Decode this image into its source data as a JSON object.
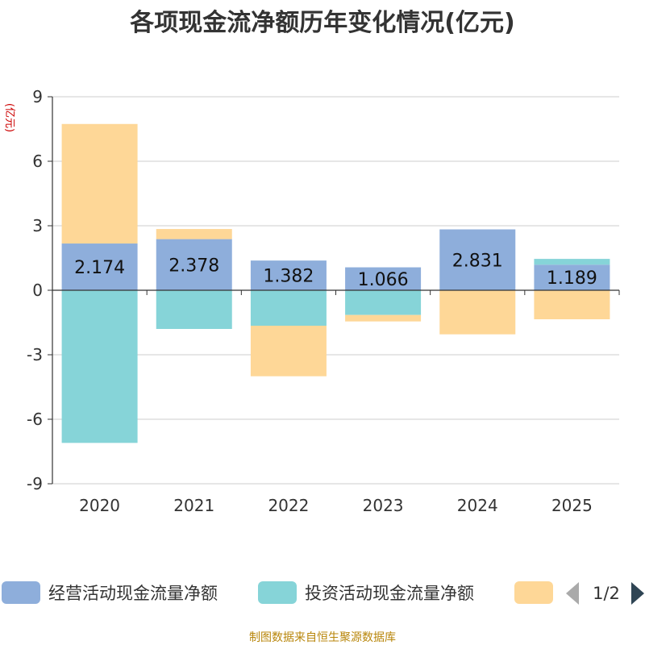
{
  "chart_data": {
    "type": "bar",
    "title": "各项现金流净额历年变化情况(亿元)",
    "ylabel": "(亿元)",
    "categories": [
      "2020",
      "2021",
      "2022",
      "2023",
      "2024",
      "2025"
    ],
    "ylim": [
      -9,
      9
    ],
    "yticks": [
      9,
      6,
      3,
      0,
      -3,
      -6,
      -9
    ],
    "grid": true,
    "stacked": true,
    "legend_position": "bottom",
    "series": [
      {
        "name": "经营活动现金流量净额",
        "color": "#8eaedb",
        "values": [
          2.174,
          2.378,
          1.382,
          1.066,
          2.831,
          1.189
        ]
      },
      {
        "name": "投资活动现金流量净额",
        "color": "#86d4d8",
        "values": [
          -7.1,
          -1.8,
          -1.65,
          -1.15,
          0.0,
          0.27
        ]
      },
      {
        "name": "",
        "color": "#fed797",
        "values": [
          5.56,
          0.47,
          -2.35,
          -0.3,
          -2.05,
          -1.35
        ]
      }
    ],
    "data_labels": [
      "2.174",
      "2.378",
      "1.382",
      "1.066",
      "2.831",
      "1.189"
    ],
    "legend_pager": "1/2",
    "source": "制图数据来自恒生聚源数据库"
  }
}
